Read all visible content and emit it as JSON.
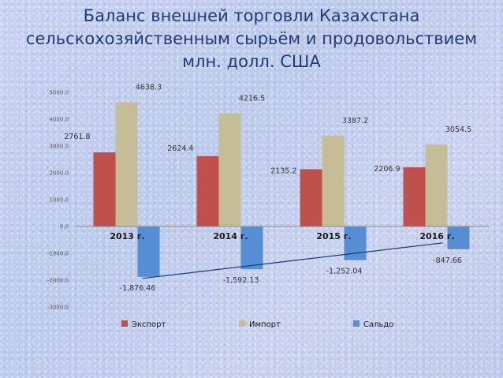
{
  "title_lines": [
    "Баланс внешней торговли Казахстана",
    "сельскохозяйственным сырьём и продовольствием",
    "млн. долл. США"
  ],
  "colors": {
    "export": "#c0504d",
    "import": "#c4bd97",
    "saldo": "#558ed5",
    "trend": "#1f3b73"
  },
  "chart_data": {
    "type": "bar",
    "title": "Баланс внешней торговли Казахстана сельскохозяйственным сырьём и продовольствием млн. долл. США",
    "categories": [
      "2013 г.",
      "2014 г.",
      "2015 г.",
      "2016 г."
    ],
    "series": [
      {
        "name": "Экспорт",
        "values": [
          2761.8,
          2624.4,
          2135.2,
          2206.9
        ],
        "labels": [
          "2761.8",
          "2624.4",
          "2135.2",
          "2206.9"
        ]
      },
      {
        "name": "Импорт",
        "values": [
          4638.3,
          4216.5,
          3387.2,
          3054.5
        ],
        "labels": [
          "4638.3",
          "4216.5",
          "3387.2",
          "3054.5"
        ]
      },
      {
        "name": "Сальдо",
        "values": [
          -1876.46,
          -1592.13,
          -1252.04,
          -847.66
        ],
        "labels": [
          "-1,876.46",
          "-1,592.13",
          "-1,252.04",
          "-847.66"
        ]
      }
    ],
    "yticks": [
      "5000.0",
      "4000.0",
      "3000.0",
      "2000.0",
      "1000.0",
      "0.0",
      "-1000.0",
      "-2000.0",
      "-3000.0"
    ],
    "ylim": [
      -3000,
      5000
    ],
    "trendline": {
      "series": "Сальдо",
      "from": 1,
      "to": 4
    },
    "legend_position": "bottom",
    "grid": false
  }
}
